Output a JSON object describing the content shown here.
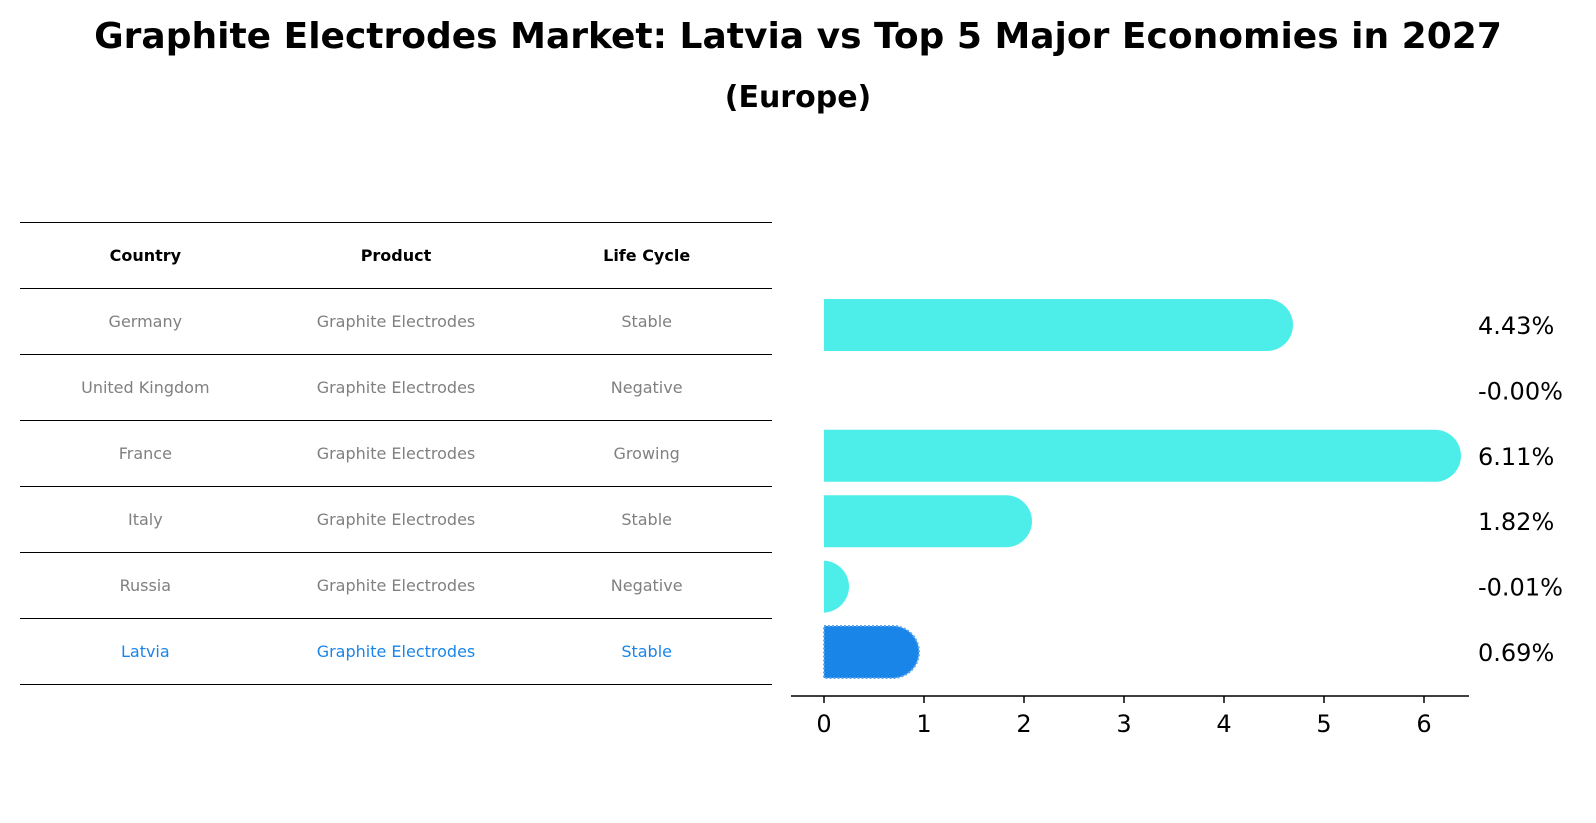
{
  "title": "Graphite Electrodes Market: Latvia vs Top 5 Major Economies in 2027",
  "subtitle": "(Europe)",
  "table": {
    "headers": [
      "Country",
      "Product",
      "Life Cycle"
    ],
    "rows": [
      [
        "Germany",
        "Graphite Electrodes",
        "Stable"
      ],
      [
        "United Kingdom",
        "Graphite Electrodes",
        "Negative"
      ],
      [
        "France",
        "Graphite Electrodes",
        "Growing"
      ],
      [
        "Italy",
        "Graphite Electrodes",
        "Stable"
      ],
      [
        "Russia",
        "Graphite Electrodes",
        "Negative"
      ],
      [
        "Latvia",
        "Graphite Electrodes",
        "Stable"
      ]
    ]
  },
  "colors": {
    "bar": "#4deeea",
    "highlight": "#1a85e8",
    "muted_text": "#808080"
  },
  "chart_data": {
    "type": "bar",
    "orientation": "horizontal",
    "categories": [
      "Germany",
      "United Kingdom",
      "France",
      "Italy",
      "Russia",
      "Latvia"
    ],
    "values": [
      4.43,
      -0.0,
      6.11,
      1.82,
      -0.01,
      0.69
    ],
    "value_labels": [
      "4.43%",
      "-0.00%",
      "6.11%",
      "1.82%",
      "-0.01%",
      "0.69%"
    ],
    "highlight": "Latvia",
    "xticks": [
      0,
      1,
      2,
      3,
      4,
      5,
      6
    ],
    "xlim": [
      -0.33,
      6.45
    ],
    "grid": false
  }
}
